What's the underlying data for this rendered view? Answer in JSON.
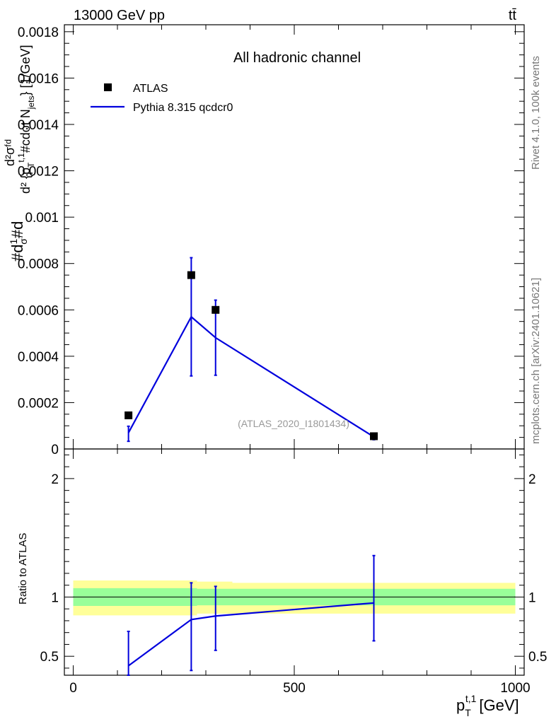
{
  "header": {
    "energy_label": "13000 GeV pp",
    "process_label": "tt̄"
  },
  "side_labels": {
    "rivet": "Rivet 4.1.0,  100k events",
    "mcplots": "mcplots.cern.ch [arXiv:2401.10621]"
  },
  "main_panel": {
    "title": "All hadronic channel",
    "watermark": "(ATLAS_2020_I1801434)",
    "ylabel_parts": [
      "#d",
      "1",
      "σ",
      "#d",
      "d²σᶠᵈ",
      "d² {p",
      "T",
      "t,1",
      "#cdot N",
      "jets",
      "} [1/GeV]"
    ]
  },
  "ratio_panel": {
    "ylabel": "Ratio to ATLAS"
  },
  "x_axis": {
    "label_main": "p",
    "label_sub": "T",
    "label_sup": "t,1",
    "label_unit": "[GeV]",
    "ticks": [
      0,
      500,
      1000
    ],
    "tick_labels": [
      "0",
      "500",
      "1000"
    ]
  },
  "legend": {
    "entries": [
      {
        "label": "ATLAS",
        "kind": "marker"
      },
      {
        "label": "Pythia 8.315 qcdcr0",
        "kind": "line"
      }
    ]
  },
  "colors": {
    "data": "#000000",
    "mc": "#0000dd",
    "band_inner": "#99ff99",
    "band_outer": "#ffff99"
  },
  "chart_data": [
    {
      "type": "scatter",
      "panel": "main",
      "xlim": [
        -20,
        1020
      ],
      "ylim": [
        0,
        0.00183
      ],
      "y_ticks": [
        0,
        0.0002,
        0.0004,
        0.0006,
        0.0008,
        0.001,
        0.0012,
        0.0014,
        0.0016,
        0.0018
      ],
      "y_tick_labels": [
        "0",
        "0.0002",
        "0.0004",
        "0.0006",
        "0.0008",
        "0.001",
        "0.0012",
        "0.0014",
        "0.0016",
        "0.0018"
      ],
      "series": [
        {
          "name": "ATLAS",
          "style": "markers",
          "x": [
            125,
            267,
            322,
            680
          ],
          "y": [
            0.000145,
            0.00075,
            0.0006,
            5.5e-05
          ]
        },
        {
          "name": "Pythia 8.315 qcdcr0",
          "style": "line",
          "x": [
            125,
            267,
            322,
            680
          ],
          "y": [
            7e-05,
            0.00057,
            0.00048,
            5.2e-05
          ],
          "err_low": [
            3.3e-05,
            0.000315,
            0.000318,
            4e-05
          ],
          "err_high": [
            9.8e-05,
            0.000825,
            0.000642,
            6.5e-05
          ]
        }
      ]
    },
    {
      "type": "line",
      "panel": "ratio",
      "xlim": [
        -20,
        1020
      ],
      "ylim": [
        0.34,
        2.25
      ],
      "y_ticks": [
        0.5,
        1,
        2
      ],
      "y_tick_labels": [
        "0.5",
        "1",
        "2"
      ],
      "bands": {
        "x_edges": [
          0,
          255,
          280,
          360,
          1000
        ],
        "inner_low": [
          0.925,
          0.925,
          0.93,
          0.93,
          0.93
        ],
        "inner_high": [
          1.075,
          1.075,
          1.07,
          1.07,
          1.07
        ],
        "outer_low": [
          0.845,
          0.845,
          0.86,
          0.86,
          0.86
        ],
        "outer_high": [
          1.14,
          1.14,
          1.13,
          1.12,
          1.12
        ]
      },
      "series": [
        {
          "name": "Pythia 8.315 qcdcr0",
          "x": [
            125,
            267,
            322,
            680
          ],
          "y": [
            0.42,
            0.81,
            0.84,
            0.95
          ],
          "err_low": [
            0.34,
            0.38,
            0.55,
            0.63
          ],
          "err_high": [
            0.71,
            1.12,
            1.09,
            1.35
          ]
        }
      ]
    }
  ]
}
